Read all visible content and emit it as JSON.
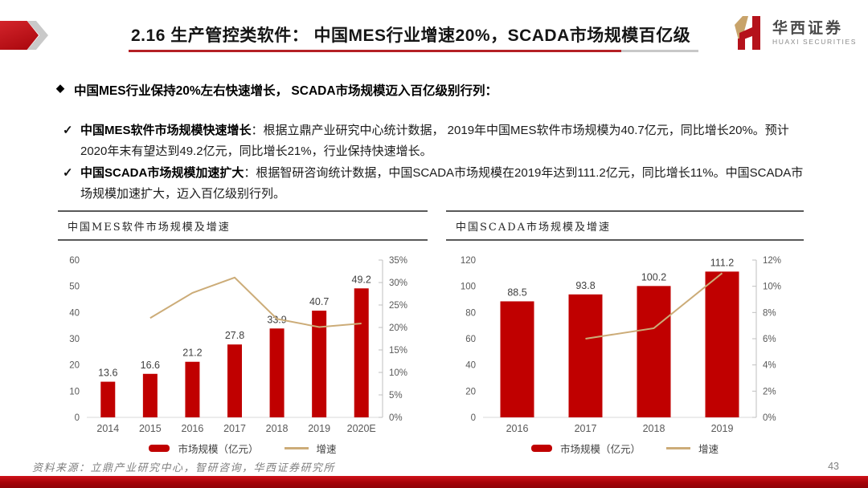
{
  "header": {
    "title": "2.16 生产管控类软件： 中国MES行业增速20%，SCADA市场规模百亿级",
    "logo_cn": "华西证券",
    "logo_en": "HUAXI SECURITIES"
  },
  "content": {
    "headline_bullet": "◆",
    "headline": "中国MES行业保持20%左右快速增长， SCADA市场规模迈入百亿级别行列：",
    "check_mark": "✓",
    "bullets": [
      {
        "lead": "中国MES软件市场规模快速增长",
        "text": "：根据立鼎产业研究中心统计数据， 2019年中国MES软件市场规模为40.7亿元，同比增长20%。预计2020年末有望达到49.2亿元，同比增长21%，行业保持快速增长。"
      },
      {
        "lead": "中国SCADA市场规模加速扩大",
        "text": "：根据智研咨询统计数据，中国SCADA市场规模在2019年达到111.2亿元，同比增长11%。中国SCADA市场规模加速扩大，迈入百亿级别行列。"
      }
    ]
  },
  "chart_data": [
    {
      "type": "bar",
      "title": "中国MES软件市场规模及增速",
      "categories": [
        "2014",
        "2015",
        "2016",
        "2017",
        "2018",
        "2019",
        "2020E"
      ],
      "series": [
        {
          "name": "市场规模（亿元）",
          "kind": "bar",
          "axis": "left",
          "values": [
            13.6,
            16.6,
            21.2,
            27.8,
            33.9,
            40.7,
            49.2
          ]
        },
        {
          "name": "增速",
          "kind": "line",
          "axis": "right",
          "values": [
            null,
            22.1,
            27.7,
            31.1,
            21.9,
            20.1,
            20.9
          ]
        }
      ],
      "bar_labels": [
        "13.6",
        "16.6",
        "21.2",
        "27.8",
        "33.9",
        "40.7",
        "49.2"
      ],
      "left_axis": {
        "min": 0,
        "max": 60,
        "step": 10,
        "suffix": ""
      },
      "right_axis": {
        "min": 0,
        "max": 35,
        "step": 5,
        "suffix": "%"
      },
      "grid": false,
      "legend_position": "bottom"
    },
    {
      "type": "bar",
      "title": "中国SCADA市场规模及增速",
      "categories": [
        "2016",
        "2017",
        "2018",
        "2019"
      ],
      "series": [
        {
          "name": "市场规模（亿元）",
          "kind": "bar",
          "axis": "left",
          "values": [
            88.5,
            93.8,
            100.2,
            111.2
          ]
        },
        {
          "name": "增速",
          "kind": "line",
          "axis": "right",
          "values": [
            null,
            6.0,
            6.8,
            11.0
          ]
        }
      ],
      "bar_labels": [
        "88.5",
        "93.8",
        "100.2",
        "111.2"
      ],
      "left_axis": {
        "min": 0,
        "max": 120,
        "step": 20,
        "suffix": ""
      },
      "right_axis": {
        "min": 0,
        "max": 12,
        "step": 2,
        "suffix": "%"
      },
      "grid": false,
      "legend_position": "bottom"
    }
  ],
  "footer": {
    "source": "资料来源：立鼎产业研究中心，智研咨询，华西证券研究所",
    "page": "43"
  },
  "colors": {
    "bar": "#c00000",
    "line": "#ccac78",
    "accent_red": "#b42025",
    "axis_text": "#595959",
    "label_text": "#404040"
  }
}
